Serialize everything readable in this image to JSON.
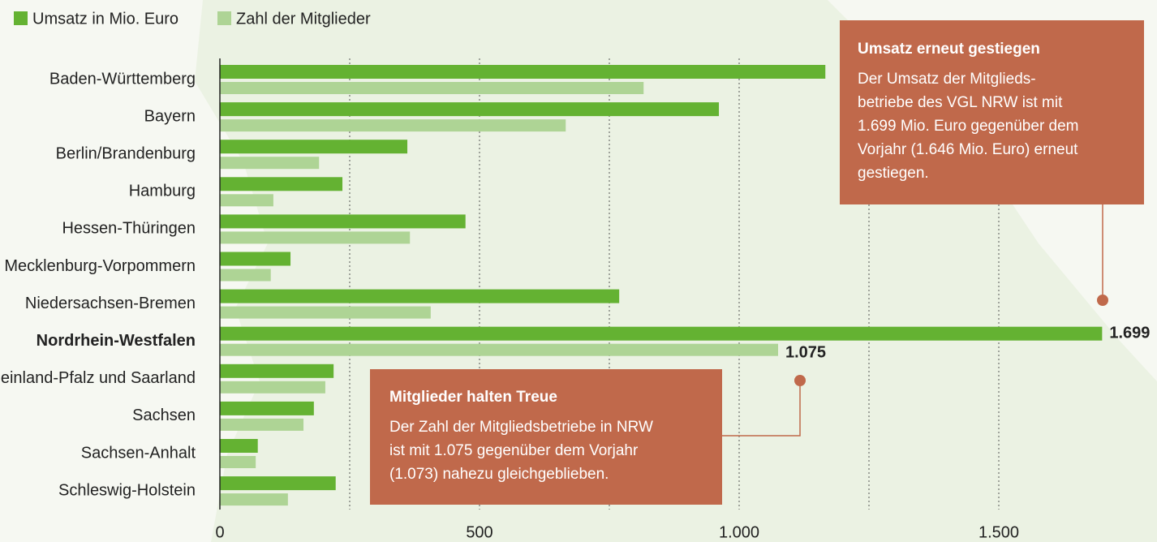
{
  "chart_data": {
    "type": "bar",
    "orientation": "horizontal",
    "categories": [
      "Baden-Württemberg",
      "Bayern",
      "Berlin/Brandenburg",
      "Hamburg",
      "Hessen-Thüringen",
      "Mecklenburg-Vorpommern",
      "Niedersachsen-Bremen",
      "Nordrhein-Westfalen",
      "Rheinland-Pfalz und Saarland",
      "Sachsen",
      "Sachsen-Anhalt",
      "Schleswig-Holstein"
    ],
    "highlight_index": 7,
    "series": [
      {
        "name": "Umsatz in Mio. Euro",
        "color": "#64b232",
        "values": [
          1166,
          961,
          361,
          236,
          473,
          136,
          769,
          1699,
          219,
          181,
          73,
          223
        ],
        "value_labels": [
          null,
          null,
          null,
          null,
          null,
          null,
          null,
          "1.699",
          null,
          null,
          null,
          null
        ]
      },
      {
        "name": "Zahl der Mitglieder",
        "color": "#aed495",
        "values": [
          816,
          666,
          191,
          103,
          366,
          98,
          406,
          1075,
          203,
          161,
          69,
          131
        ],
        "value_labels": [
          null,
          null,
          null,
          null,
          null,
          null,
          null,
          "1.075",
          null,
          null,
          null,
          null
        ]
      }
    ],
    "xlim": [
      0,
      1800
    ],
    "xticks": [
      0,
      500,
      {
        "value": 1000,
        "label": "1.000"
      },
      {
        "value": 1500,
        "label": "1.500"
      }
    ],
    "xgrid": [
      250,
      500,
      750,
      1000,
      1250,
      1500
    ],
    "legend": "top-left",
    "annotations": [
      {
        "title": "Umsatz erneut gestiegen",
        "lines": [
          "Der Umsatz der Mitglieds-",
          "betriebe des VGL NRW ist mit",
          "1.699 Mio. Euro gegenüber dem",
          "Vorjahr (1.646 Mio. Euro) erneut",
          "gestiegen."
        ],
        "color": "#c0694b"
      },
      {
        "title": "Mitglieder halten Treue",
        "lines": [
          "Der Zahl der Mitgliedsbetriebe in NRW",
          "ist mit 1.075 gegenüber dem Vorjahr",
          "(1.073) nahezu gleichgeblieben."
        ],
        "color": "#c0694b"
      }
    ]
  }
}
